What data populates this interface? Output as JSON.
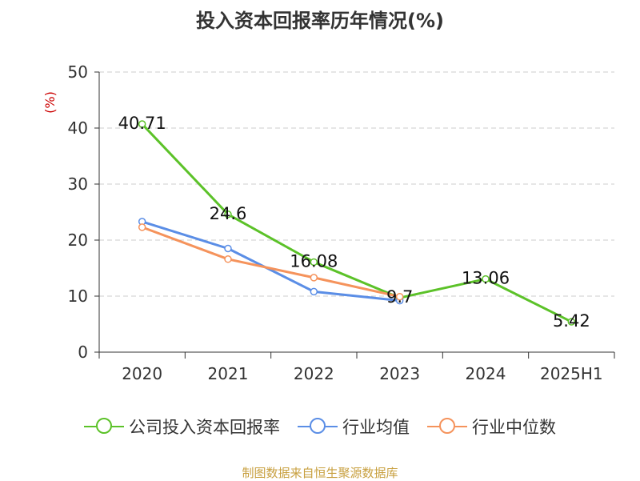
{
  "chart_data": {
    "type": "line",
    "title": "投入资本回报率历年情况(%)",
    "y_unit": "(%)",
    "categories": [
      "2020",
      "2021",
      "2022",
      "2023",
      "2024",
      "2025H1"
    ],
    "y_ticks": [
      0,
      10,
      20,
      30,
      40,
      50
    ],
    "ylim": [
      0,
      50
    ],
    "grid": true,
    "legend_position": "bottom",
    "series": [
      {
        "name": "公司投入资本回报率",
        "color": "#5cc229",
        "values": [
          40.71,
          24.6,
          16.08,
          9.7,
          13.06,
          5.42
        ],
        "labels": [
          "40.71",
          "24.6",
          "16.08",
          "9.7",
          "13.06",
          "5.42"
        ]
      },
      {
        "name": "行业均值",
        "color": "#5b8ee6",
        "values": [
          23.3,
          18.5,
          10.8,
          9.2,
          null,
          null
        ]
      },
      {
        "name": "行业中位数",
        "color": "#f5935c",
        "values": [
          22.3,
          16.6,
          13.3,
          9.9,
          null,
          null
        ]
      }
    ]
  },
  "source": "制图数据来自恒生聚源数据库"
}
